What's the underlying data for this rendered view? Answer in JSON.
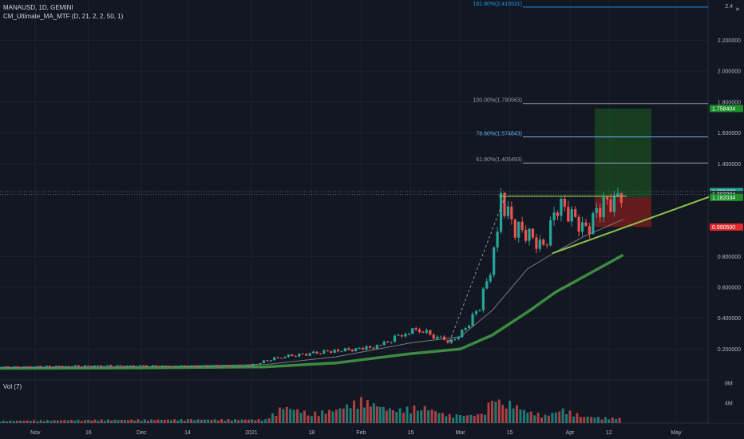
{
  "chart_data": {
    "type": "candlestick",
    "title": "MANAUSD, 1D, GEMINI",
    "indicator": "CM_Ultimate_MA_MTF (D, 21, 2, 2, 50, 1)",
    "volume_label": "Vol (7)",
    "price_axis": {
      "ticks": [
        "2.200000",
        "2.000000",
        "1.800000",
        "1.600000",
        "1.400000",
        "0.800000",
        "0.600000",
        "0.400000",
        "0.200000"
      ],
      "tick_values": [
        2.2,
        2.0,
        1.8,
        1.6,
        1.4,
        0.8,
        0.6,
        0.4,
        0.2
      ],
      "top_label": "2.4",
      "ylim": [
        0.0,
        2.42
      ]
    },
    "volume_axis": {
      "ticks": [
        "8M",
        "4M"
      ],
      "tick_values": [
        8000000,
        4000000
      ],
      "ylim": [
        0,
        8000000
      ]
    },
    "time_axis": {
      "labels": [
        "Nov",
        "16",
        "Dec",
        "14",
        "2021",
        "18",
        "Feb",
        "15",
        "Mar",
        "15",
        "Apr",
        "12",
        "May"
      ],
      "dates": [
        "2020-11-01",
        "2020-11-16",
        "2020-12-01",
        "2020-12-14",
        "2021-01-01",
        "2021-01-18",
        "2021-02-01",
        "2021-02-15",
        "2021-03-01",
        "2021-03-15",
        "2021-04-01",
        "2021-04-12",
        "2021-05-01"
      ]
    },
    "price_badges": [
      {
        "text": "1.758404",
        "value": 1.758404,
        "color": "#1b8f2a"
      },
      {
        "text": "1.220420",
        "value": 1.22042,
        "color": "#26a69a",
        "sub": "07:21:44"
      },
      {
        "text": "1.202394",
        "value": 1.202394,
        "color": "#2a2e39"
      },
      {
        "text": "1.182034",
        "value": 1.182034,
        "color": "#1b8f2a"
      },
      {
        "text": "0.990500",
        "value": 0.9905,
        "color": "#e0282e"
      }
    ],
    "fib_levels": [
      {
        "text": "161.80%(2.415531)",
        "value": 2.415531,
        "color": "#2196f3"
      },
      {
        "text": "100.00%(1.790563)",
        "value": 1.790563,
        "color": "#9598a1"
      },
      {
        "text": "78.60%(1.574843)",
        "value": 1.574843,
        "color": "#64b5f6"
      },
      {
        "text": "61.80%(1.405493)",
        "value": 1.405493,
        "color": "#9598a1"
      }
    ],
    "position": {
      "entry": 1.182034,
      "target": 1.758404,
      "stop": 0.9905,
      "start_date": "2021-04-08",
      "end_date": "2021-04-24"
    },
    "triangle": {
      "resistance": 1.19,
      "resistance_from": "2021-03-12",
      "resistance_to": "2021-04-17",
      "support_from": {
        "date": "2021-03-27",
        "value": 0.82
      },
      "support_to": {
        "date": "2021-05-12",
        "value": 1.2
      }
    },
    "pre_breakout_projection": {
      "from": {
        "date": "2021-02-26",
        "value": 0.25
      },
      "to": {
        "date": "2021-03-14",
        "value": 1.21
      }
    },
    "series": [
      {
        "name": "Price",
        "x": [
          "2020-10-22",
          "2020-11-01",
          "2020-11-10",
          "2020-11-20",
          "2020-12-01",
          "2020-12-10",
          "2020-12-20",
          "2021-01-01",
          "2021-01-05",
          "2021-01-10",
          "2021-01-18",
          "2021-01-25",
          "2021-02-01",
          "2021-02-07",
          "2021-02-13",
          "2021-02-18",
          "2021-02-23",
          "2021-02-27",
          "2021-03-03",
          "2021-03-07",
          "2021-03-10",
          "2021-03-13",
          "2021-03-17",
          "2021-03-21",
          "2021-03-25",
          "2021-03-29",
          "2021-04-02",
          "2021-04-06",
          "2021-04-10",
          "2021-04-14",
          "2021-04-16"
        ],
        "values": [
          0.081,
          0.085,
          0.088,
          0.09,
          0.09,
          0.088,
          0.087,
          0.09,
          0.12,
          0.15,
          0.17,
          0.19,
          0.2,
          0.22,
          0.3,
          0.33,
          0.27,
          0.25,
          0.33,
          0.48,
          0.72,
          1.16,
          0.98,
          0.95,
          0.85,
          1.13,
          1.08,
          0.96,
          1.12,
          1.17,
          1.22
        ]
      },
      {
        "name": "MA 21",
        "x": [
          "2020-10-22",
          "2020-12-01",
          "2021-01-05",
          "2021-01-25",
          "2021-02-15",
          "2021-03-01",
          "2021-03-10",
          "2021-03-20",
          "2021-03-28",
          "2021-04-05",
          "2021-04-16"
        ],
        "values": [
          0.08,
          0.085,
          0.1,
          0.15,
          0.24,
          0.28,
          0.45,
          0.72,
          0.83,
          0.93,
          1.04
        ]
      },
      {
        "name": "MA 50",
        "x": [
          "2020-10-22",
          "2020-12-01",
          "2021-01-05",
          "2021-01-25",
          "2021-02-15",
          "2021-03-01",
          "2021-03-10",
          "2021-03-20",
          "2021-03-28",
          "2021-04-05",
          "2021-04-16"
        ],
        "values": [
          0.075,
          0.078,
          0.085,
          0.11,
          0.17,
          0.2,
          0.29,
          0.44,
          0.57,
          0.67,
          0.81
        ]
      }
    ],
    "volume": {
      "x": [
        "2020-10-22",
        "2020-11-15",
        "2020-12-15",
        "2021-01-05",
        "2021-01-10",
        "2021-01-18",
        "2021-01-25",
        "2021-02-01",
        "2021-02-10",
        "2021-02-18",
        "2021-02-25",
        "2021-03-01",
        "2021-03-07",
        "2021-03-10",
        "2021-03-14",
        "2021-03-20",
        "2021-03-25",
        "2021-03-30",
        "2021-04-05",
        "2021-04-10",
        "2021-04-16"
      ],
      "values": [
        500000,
        700000,
        800000,
        800000,
        3700000,
        2200000,
        3000000,
        5200000,
        2800000,
        3800000,
        1900000,
        1700000,
        1900000,
        5200000,
        4900000,
        2600000,
        1700000,
        3000000,
        1500000,
        1200000,
        1100000
      ]
    },
    "colors": {
      "background": "#131722",
      "up": "#26a69a",
      "down": "#ef5350",
      "ma_fast": "#787b86",
      "ma_slow": "#43a047",
      "triangle": "#8bc34a",
      "target_zone": "#1b5e20",
      "stop_zone": "#7f1d1d",
      "grid": "#1e222d"
    }
  }
}
